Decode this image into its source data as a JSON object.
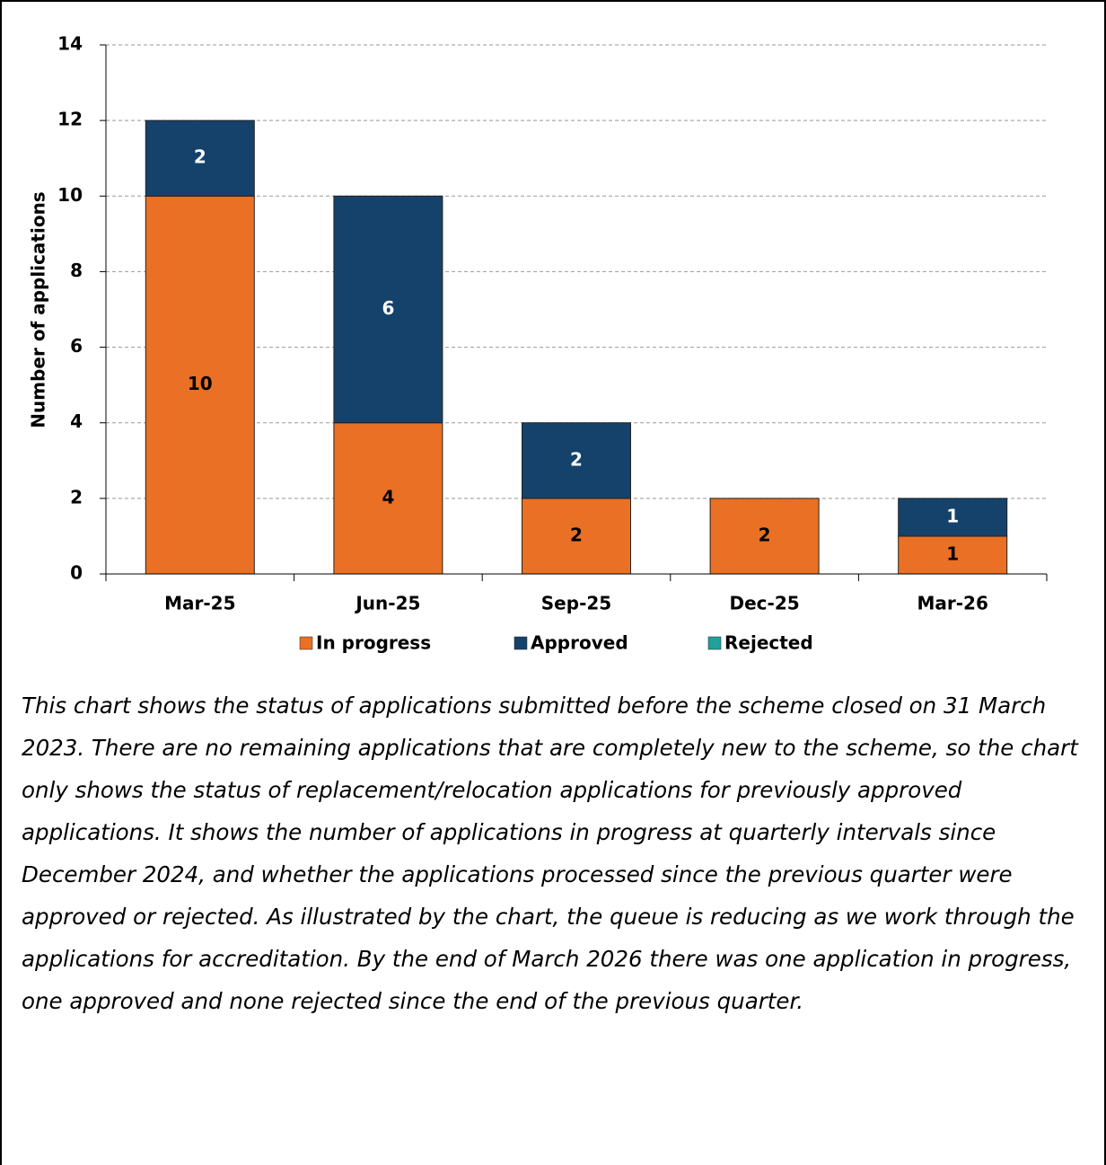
{
  "chart_data": {
    "type": "stacked_bar",
    "y_axis_label": "Number of applications",
    "categories": [
      "Mar-25",
      "Jun-25",
      "Sep-25",
      "Dec-25",
      "Mar-26"
    ],
    "series": [
      {
        "name": "In progress",
        "color": "#e97024",
        "label_color": "#000000",
        "values": [
          10,
          4,
          2,
          2,
          1
        ]
      },
      {
        "name": "Approved",
        "color": "#15426b",
        "label_color": "#ffffff",
        "values": [
          2,
          6,
          2,
          0,
          1
        ]
      },
      {
        "name": "Rejected",
        "color": "#22a09a",
        "label_color": "#ffffff",
        "values": [
          0,
          0,
          0,
          0,
          0
        ]
      }
    ],
    "ylim": [
      0,
      14
    ],
    "yticks": [
      0,
      2,
      4,
      6,
      8,
      10,
      12,
      14
    ],
    "grid": true,
    "legend": "bottom",
    "caption": "This chart shows the status of applications submitted before the scheme closed on 31 March 2023. There are no remaining applications that are completely new to the scheme, so the chart only shows the status of replacement/relocation applications for previously approved applications. It shows the number of applications in progress at quarterly intervals since December 2024, and whether the applications processed since the previous quarter were approved or rejected. As illustrated by the chart, the queue is reducing as we work through the applications for accreditation. By the end of March 2026 there was one application in progress, one approved and none rejected since the end of the previous quarter."
  }
}
